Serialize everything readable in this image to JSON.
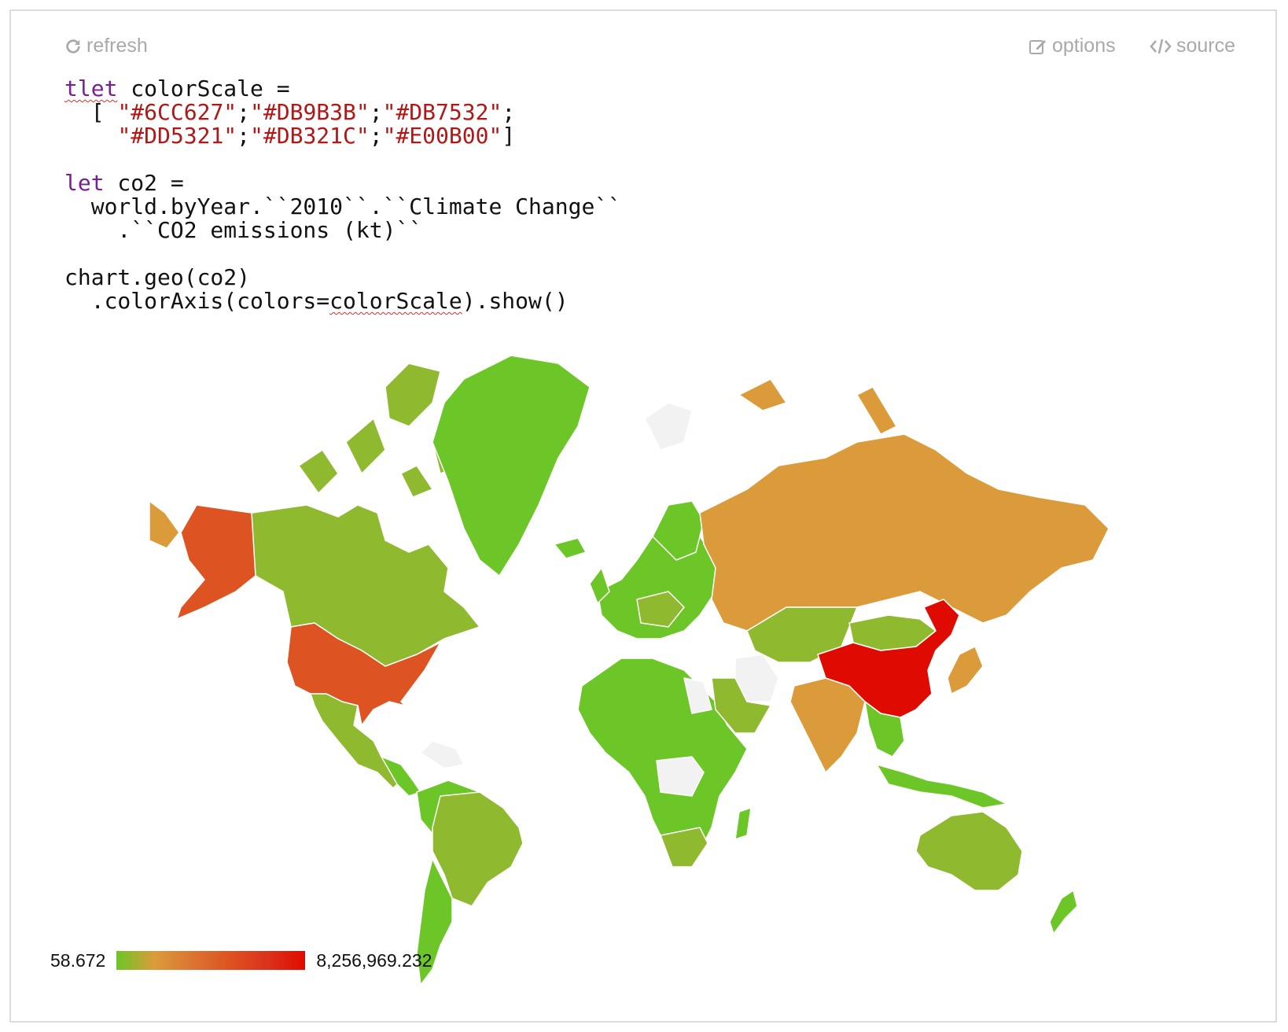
{
  "toolbar": {
    "refresh_label": "refresh",
    "options_label": "options",
    "source_label": "source"
  },
  "code": {
    "line1_kw": "tlet",
    "line1_rest": " colorScale =",
    "line2_open": "  [ ",
    "c1": "\"#6CC627\"",
    "c2": "\"#DB9B3B\"",
    "c3": "\"#DB7532\"",
    "c4": "\"#DD5321\"",
    "c5": "\"#DB321C\"",
    "c6": "\"#E00B00\"",
    "sep": ";",
    "close": "]",
    "line4_kw": "let",
    "line4_rest": " co2 =",
    "line5": "  world.byYear.``2010``.``Climate Change``",
    "line6": "    .``CO2 emissions (kt)``",
    "line8": "chart.geo(co2)",
    "line9_a": "  .colorAxis(colors=",
    "line9_b": "colorScale",
    "line9_c": ").show()"
  },
  "legend": {
    "min": "58.672",
    "max": "8,256,969.232",
    "colors": [
      "#6CC627",
      "#DB9B3B",
      "#DB7532",
      "#DD5321",
      "#DB321C",
      "#E00B00"
    ]
  },
  "map": {
    "type": "geo",
    "title": "",
    "no_data_color": "#f2f2f2",
    "regions": [
      {
        "name": "United States",
        "color": "#DD5321"
      },
      {
        "name": "Alaska",
        "color": "#DD5321"
      },
      {
        "name": "China",
        "color": "#E00B00"
      },
      {
        "name": "Russia",
        "color": "#DB9B3B"
      },
      {
        "name": "India",
        "color": "#DB9B3B"
      },
      {
        "name": "Japan",
        "color": "#DB9B3B"
      },
      {
        "name": "Canada",
        "color": "#8FBA30"
      },
      {
        "name": "Greenland",
        "color": "#6CC627"
      },
      {
        "name": "Brazil",
        "color": "#8FBA30"
      },
      {
        "name": "Australia",
        "color": "#8FBA30"
      }
    ]
  }
}
